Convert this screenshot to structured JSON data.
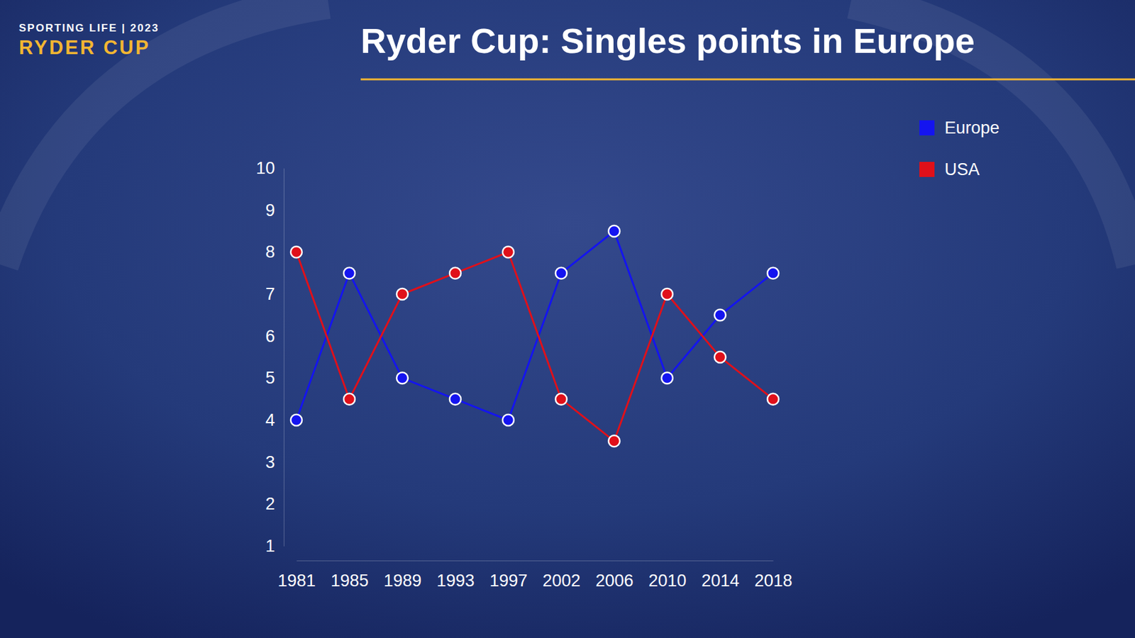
{
  "chart_data": {
    "type": "line",
    "title": "Ryder Cup: Singles points in Europe",
    "annotations": [
      "SPORTING LIFE | 2023",
      "RYDER CUP"
    ],
    "categories": [
      "1981",
      "1985",
      "1989",
      "1993",
      "1997",
      "2002",
      "2006",
      "2010",
      "2014",
      "2018"
    ],
    "series": [
      {
        "name": "Europe",
        "color": "#1414f0",
        "marker": "circle",
        "values": [
          4,
          7.5,
          5,
          4.5,
          4,
          7.5,
          8.5,
          5,
          6.5,
          7.5
        ]
      },
      {
        "name": "USA",
        "color": "#e0101a",
        "marker": "circle",
        "values": [
          8,
          4.5,
          7,
          7.5,
          8,
          4.5,
          3.5,
          7,
          5.5,
          4.5
        ]
      }
    ],
    "ylim": [
      1,
      10
    ],
    "yticks": [
      1,
      2,
      3,
      4,
      5,
      6,
      7,
      8,
      9,
      10
    ],
    "grid": false,
    "legend": "top-right"
  }
}
